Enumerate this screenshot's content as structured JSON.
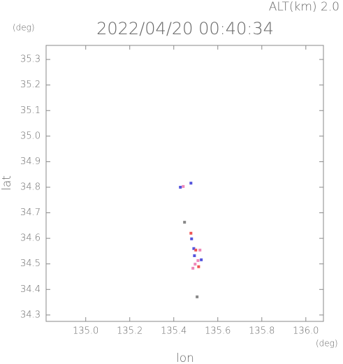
{
  "chart_data": {
    "type": "scatter",
    "title": "2022/04/20 00:40:34",
    "subtitle": "ALT(km) 2.0",
    "x_unit": "(deg)",
    "y_unit": "(deg)",
    "x_label": "lon",
    "y_label": "lat",
    "xlim": [
      134.82,
      136.08
    ],
    "ylim": [
      34.275,
      35.355
    ],
    "xticks": [
      {
        "value": 135,
        "label": "135.0"
      },
      135.2,
      135.4,
      135.6,
      135.8,
      {
        "value": 136,
        "label": "136.0"
      }
    ],
    "yticks": [
      34.3,
      34.4,
      34.5,
      34.6,
      34.7,
      34.8,
      34.9,
      {
        "value": 35,
        "label": "35.0"
      },
      35.1,
      35.2,
      35.3
    ],
    "series": [
      {
        "name": "blue",
        "color": "#5555dd",
        "x": [
          135.43,
          135.478,
          135.481,
          135.491,
          135.494,
          135.525
        ],
        "values": [
          34.8,
          34.816,
          34.598,
          34.56,
          34.532,
          34.516
        ]
      },
      {
        "name": "red",
        "color": "#ee5555",
        "x": [
          135.478,
          135.5,
          135.513
        ],
        "values": [
          34.62,
          34.554,
          34.489
        ]
      },
      {
        "name": "pink",
        "color": "#ee88bb",
        "x": [
          135.443,
          135.519,
          135.51,
          135.497,
          135.487
        ],
        "values": [
          34.803,
          34.554,
          34.513,
          34.499,
          34.483
        ]
      },
      {
        "name": "gray",
        "color": "#888888",
        "x": [
          135.449,
          135.506
        ],
        "values": [
          34.663,
          34.371
        ]
      }
    ]
  }
}
